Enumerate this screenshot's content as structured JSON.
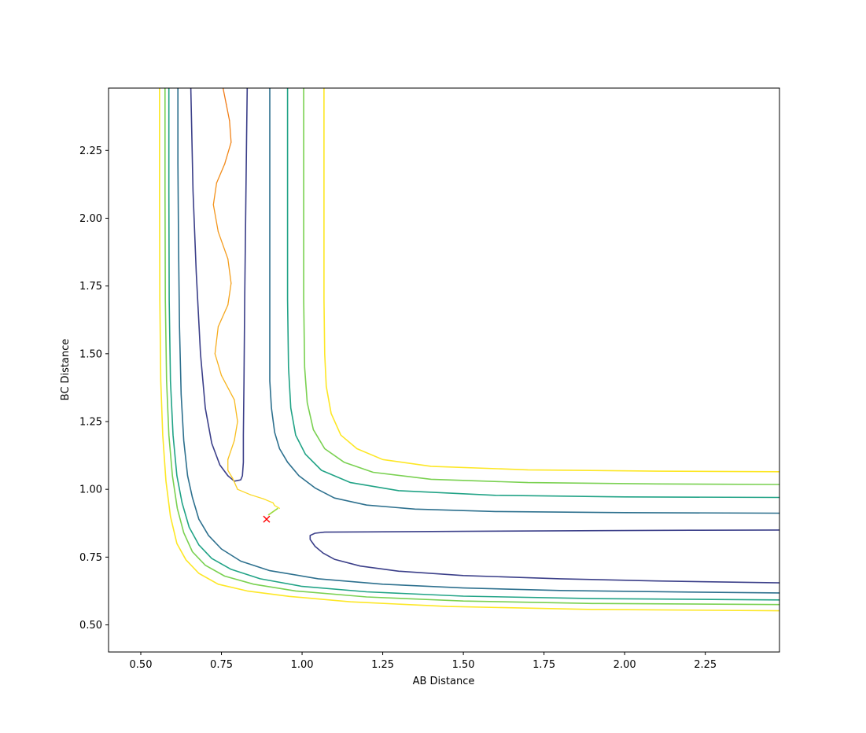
{
  "chart_data": {
    "type": "contour",
    "title": "",
    "xlabel": "AB Distance",
    "ylabel": "BC Distance",
    "xlim": [
      0.4,
      2.48
    ],
    "ylim": [
      0.4,
      2.48
    ],
    "x_ticks": [
      0.5,
      0.75,
      1.0,
      1.25,
      1.5,
      1.75,
      2.0,
      2.25
    ],
    "x_tick_labels": [
      "0.50",
      "0.75",
      "1.00",
      "1.25",
      "1.50",
      "1.75",
      "2.00",
      "2.25"
    ],
    "y_ticks": [
      0.5,
      0.75,
      1.0,
      1.25,
      1.5,
      1.75,
      2.0,
      2.25
    ],
    "y_tick_labels": [
      "0.50",
      "0.75",
      "1.00",
      "1.25",
      "1.50",
      "1.75",
      "2.00",
      "2.25"
    ],
    "grid": false,
    "legend": "none",
    "contours": [
      {
        "color": "#3b3f89",
        "segments": [
          [
            [
              0.83,
              2.48
            ],
            [
              0.828,
              2.3
            ],
            [
              0.825,
              2.0
            ],
            [
              0.822,
              1.7
            ],
            [
              0.82,
              1.4
            ],
            [
              0.818,
              1.2
            ],
            [
              0.818,
              1.1
            ],
            [
              0.815,
              1.05
            ],
            [
              0.81,
              1.035
            ],
            [
              0.79,
              1.03
            ],
            [
              0.77,
              1.05
            ],
            [
              0.745,
              1.09
            ],
            [
              0.72,
              1.17
            ],
            [
              0.7,
              1.3
            ],
            [
              0.685,
              1.5
            ],
            [
              0.672,
              1.8
            ],
            [
              0.662,
              2.1
            ],
            [
              0.655,
              2.48
            ]
          ],
          [
            [
              2.48,
              0.85
            ],
            [
              2.2,
              0.849
            ],
            [
              1.8,
              0.847
            ],
            [
              1.5,
              0.845
            ],
            [
              1.2,
              0.843
            ],
            [
              1.07,
              0.842
            ],
            [
              1.04,
              0.838
            ],
            [
              1.025,
              0.83
            ],
            [
              1.025,
              0.815
            ],
            [
              1.04,
              0.79
            ],
            [
              1.065,
              0.765
            ],
            [
              1.1,
              0.742
            ],
            [
              1.18,
              0.717
            ],
            [
              1.3,
              0.698
            ],
            [
              1.5,
              0.682
            ],
            [
              1.8,
              0.67
            ],
            [
              2.1,
              0.662
            ],
            [
              2.48,
              0.655
            ]
          ]
        ]
      },
      {
        "color": "#2d708e",
        "segments": [
          [
            [
              0.9,
              2.48
            ],
            [
              0.9,
              2.2
            ],
            [
              0.9,
              1.9
            ],
            [
              0.9,
              1.6
            ],
            [
              0.9,
              1.4
            ],
            [
              0.905,
              1.3
            ],
            [
              0.915,
              1.21
            ],
            [
              0.93,
              1.15
            ],
            [
              0.955,
              1.1
            ],
            [
              0.99,
              1.05
            ],
            [
              1.04,
              1.005
            ],
            [
              1.1,
              0.968
            ],
            [
              1.2,
              0.942
            ],
            [
              1.35,
              0.927
            ],
            [
              1.6,
              0.918
            ],
            [
              2.0,
              0.914
            ],
            [
              2.48,
              0.912
            ]
          ],
          [
            [
              0.615,
              2.48
            ],
            [
              0.615,
              2.2
            ],
            [
              0.617,
              1.9
            ],
            [
              0.62,
              1.6
            ],
            [
              0.625,
              1.35
            ],
            [
              0.633,
              1.18
            ],
            [
              0.645,
              1.05
            ],
            [
              0.66,
              0.97
            ],
            [
              0.68,
              0.89
            ],
            [
              0.71,
              0.83
            ],
            [
              0.75,
              0.78
            ],
            [
              0.81,
              0.735
            ],
            [
              0.9,
              0.7
            ],
            [
              1.05,
              0.67
            ],
            [
              1.25,
              0.65
            ],
            [
              1.5,
              0.636
            ],
            [
              1.8,
              0.627
            ],
            [
              2.2,
              0.621
            ],
            [
              2.48,
              0.618
            ]
          ]
        ]
      },
      {
        "color": "#21a386",
        "segments": [
          [
            [
              0.955,
              2.48
            ],
            [
              0.955,
              2.1
            ],
            [
              0.955,
              1.7
            ],
            [
              0.958,
              1.45
            ],
            [
              0.965,
              1.3
            ],
            [
              0.98,
              1.2
            ],
            [
              1.01,
              1.13
            ],
            [
              1.06,
              1.07
            ],
            [
              1.15,
              1.025
            ],
            [
              1.3,
              0.995
            ],
            [
              1.6,
              0.978
            ],
            [
              2.0,
              0.972
            ],
            [
              2.48,
              0.97
            ]
          ],
          [
            [
              0.587,
              2.48
            ],
            [
              0.587,
              2.1
            ],
            [
              0.588,
              1.7
            ],
            [
              0.592,
              1.4
            ],
            [
              0.6,
              1.2
            ],
            [
              0.612,
              1.05
            ],
            [
              0.628,
              0.95
            ],
            [
              0.65,
              0.86
            ],
            [
              0.68,
              0.795
            ],
            [
              0.72,
              0.745
            ],
            [
              0.78,
              0.705
            ],
            [
              0.87,
              0.67
            ],
            [
              1.0,
              0.642
            ],
            [
              1.2,
              0.622
            ],
            [
              1.5,
              0.606
            ],
            [
              1.9,
              0.597
            ],
            [
              2.48,
              0.592
            ]
          ]
        ]
      },
      {
        "color": "#7ad151",
        "segments": [
          [
            [
              1.005,
              2.48
            ],
            [
              1.005,
              2.1
            ],
            [
              1.005,
              1.7
            ],
            [
              1.008,
              1.45
            ],
            [
              1.016,
              1.32
            ],
            [
              1.035,
              1.22
            ],
            [
              1.07,
              1.15
            ],
            [
              1.13,
              1.1
            ],
            [
              1.22,
              1.063
            ],
            [
              1.4,
              1.037
            ],
            [
              1.7,
              1.025
            ],
            [
              2.1,
              1.02
            ],
            [
              2.48,
              1.018
            ]
          ],
          [
            [
              0.575,
              2.48
            ],
            [
              0.575,
              2.1
            ],
            [
              0.576,
              1.7
            ],
            [
              0.58,
              1.4
            ],
            [
              0.587,
              1.2
            ],
            [
              0.598,
              1.05
            ],
            [
              0.613,
              0.93
            ],
            [
              0.633,
              0.84
            ],
            [
              0.66,
              0.77
            ],
            [
              0.7,
              0.72
            ],
            [
              0.76,
              0.68
            ],
            [
              0.85,
              0.65
            ],
            [
              0.98,
              0.625
            ],
            [
              1.2,
              0.603
            ],
            [
              1.5,
              0.588
            ],
            [
              1.9,
              0.579
            ],
            [
              2.48,
              0.575
            ]
          ]
        ]
      },
      {
        "color": "#fde725",
        "segments": [
          [
            [
              1.068,
              2.48
            ],
            [
              1.068,
              2.1
            ],
            [
              1.068,
              1.7
            ],
            [
              1.07,
              1.5
            ],
            [
              1.075,
              1.38
            ],
            [
              1.09,
              1.28
            ],
            [
              1.12,
              1.2
            ],
            [
              1.17,
              1.15
            ],
            [
              1.25,
              1.11
            ],
            [
              1.4,
              1.085
            ],
            [
              1.7,
              1.072
            ],
            [
              2.1,
              1.067
            ],
            [
              2.48,
              1.065
            ]
          ],
          [
            [
              0.558,
              2.48
            ],
            [
              0.558,
              2.1
            ],
            [
              0.559,
              1.7
            ],
            [
              0.562,
              1.4
            ],
            [
              0.568,
              1.2
            ],
            [
              0.578,
              1.03
            ],
            [
              0.592,
              0.9
            ],
            [
              0.612,
              0.8
            ],
            [
              0.64,
              0.74
            ],
            [
              0.68,
              0.69
            ],
            [
              0.74,
              0.65
            ],
            [
              0.83,
              0.625
            ],
            [
              0.96,
              0.605
            ],
            [
              1.15,
              0.585
            ],
            [
              1.45,
              0.568
            ],
            [
              1.9,
              0.557
            ],
            [
              2.48,
              0.552
            ]
          ]
        ]
      }
    ],
    "trajectory": {
      "color_start": "#fde725",
      "color_end": "#f07a18",
      "points": [
        [
          0.93,
          0.93
        ],
        [
          0.915,
          0.94
        ],
        [
          0.91,
          0.95
        ],
        [
          0.88,
          0.965
        ],
        [
          0.84,
          0.98
        ],
        [
          0.8,
          1.0
        ],
        [
          0.785,
          1.04
        ],
        [
          0.77,
          1.07
        ],
        [
          0.77,
          1.11
        ],
        [
          0.79,
          1.18
        ],
        [
          0.8,
          1.25
        ],
        [
          0.79,
          1.33
        ],
        [
          0.75,
          1.42
        ],
        [
          0.73,
          1.5
        ],
        [
          0.74,
          1.6
        ],
        [
          0.77,
          1.68
        ],
        [
          0.78,
          1.76
        ],
        [
          0.77,
          1.85
        ],
        [
          0.74,
          1.95
        ],
        [
          0.725,
          2.05
        ],
        [
          0.735,
          2.13
        ],
        [
          0.76,
          2.2
        ],
        [
          0.78,
          2.28
        ],
        [
          0.775,
          2.36
        ],
        [
          0.765,
          2.42
        ],
        [
          0.755,
          2.48
        ]
      ]
    },
    "start_marker": {
      "symbol": "x",
      "color": "#ff0000",
      "x": 0.89,
      "y": 0.89
    }
  }
}
